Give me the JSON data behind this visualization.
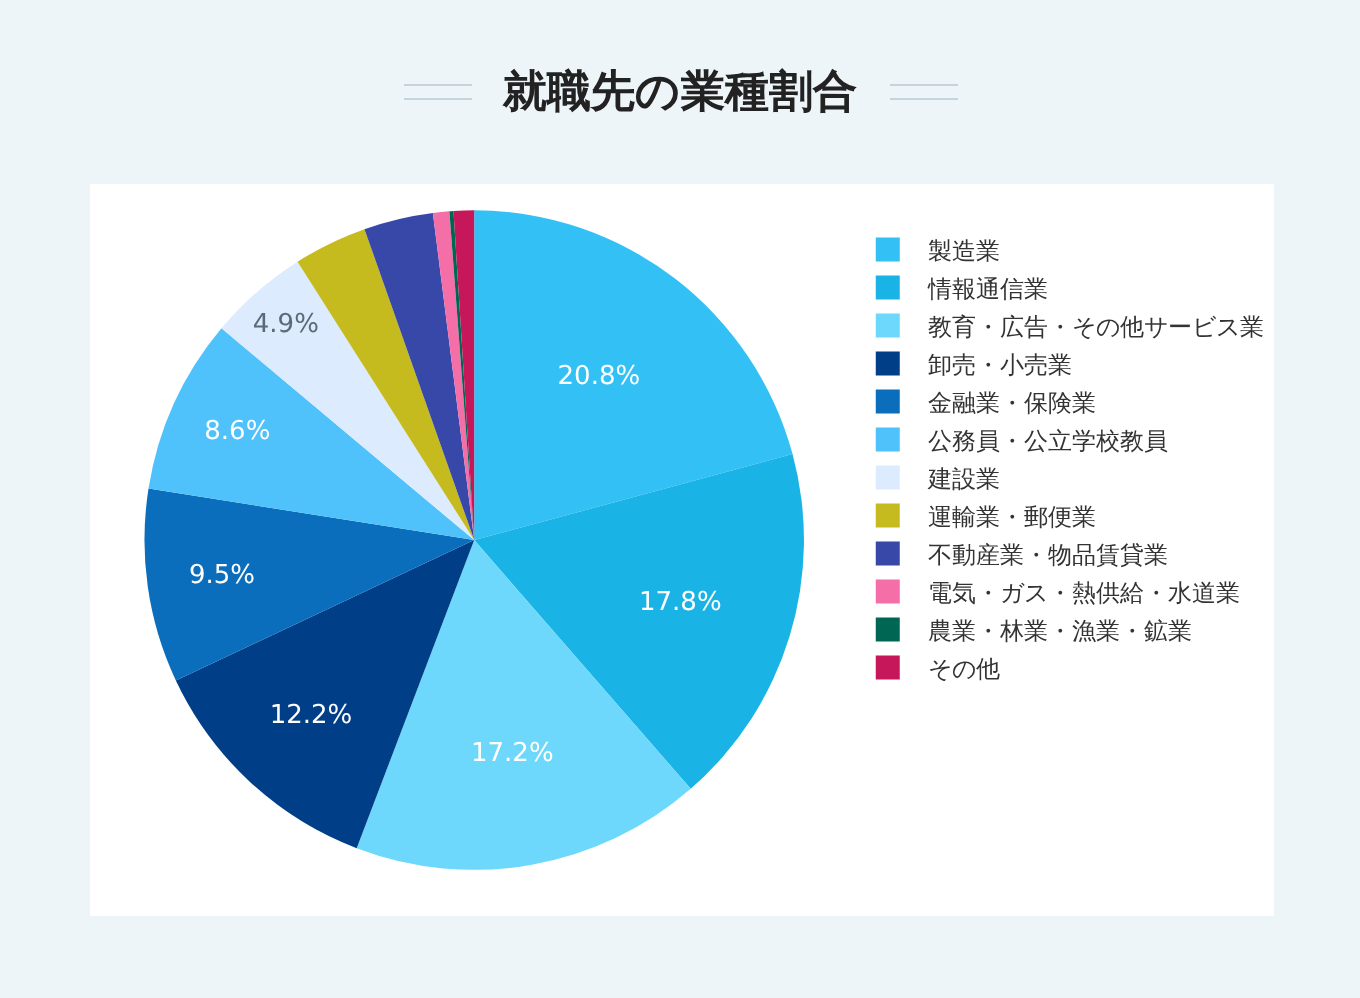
{
  "chart_data": {
    "type": "pie",
    "title": "就職先の業種割合",
    "categories": [
      "製造業",
      "情報通信業",
      "教育・広告・その他サービス業",
      "卸売・小売業",
      "金融業・保険業",
      "公務員・公立学校教員",
      "建設業",
      "運輸業・郵便業",
      "不動産業・物品賃貸業",
      "電気・ガス・熱供給・水道業",
      "農業・林業・漁業・鉱業",
      "その他"
    ],
    "values": [
      20.8,
      17.8,
      17.2,
      12.2,
      9.5,
      8.6,
      4.9,
      3.6,
      3.4,
      0.8,
      0.2,
      1.0
    ],
    "colors": [
      "#33c1f5",
      "#1ab3e6",
      "#6dd8fb",
      "#003f87",
      "#0a6ebd",
      "#4fc1fb",
      "#dcebfd",
      "#c5bb1f",
      "#3848a8",
      "#f46ea8",
      "#006654",
      "#c6175a"
    ],
    "value_labels": [
      "20.8%",
      "17.8%",
      "17.2%",
      "12.2%",
      "9.5%",
      "8.6%",
      "4.9%",
      null,
      null,
      null,
      null,
      null
    ],
    "legend": "top right"
  }
}
